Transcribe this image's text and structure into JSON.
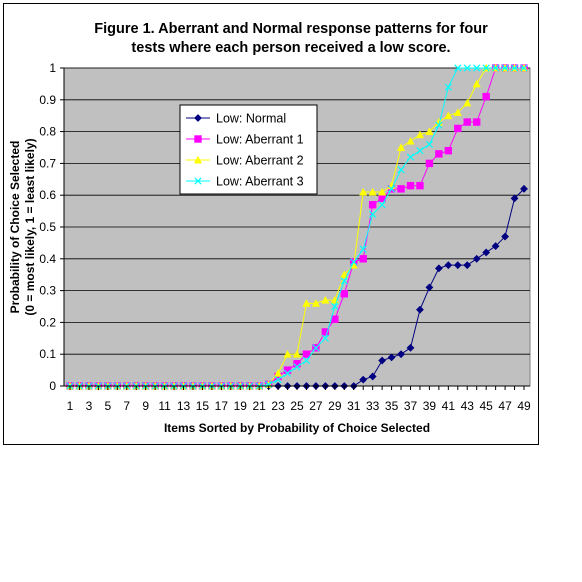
{
  "chart_data": {
    "type": "line",
    "title_lines": [
      "Figure 1. Aberrant and Normal  response patterns for four",
      "tests where each person received a low score."
    ],
    "xlabel": "Items Sorted by Probability of Choice Selected",
    "ylabel_lines": [
      "Probability of Choice Selected",
      "(0 = most likely, 1 = least likely)"
    ],
    "xlim": [
      1,
      49
    ],
    "ylim": [
      0,
      1
    ],
    "x_tick_labels": [
      "1",
      "3",
      "5",
      "7",
      "9",
      "11",
      "13",
      "15",
      "17",
      "19",
      "21",
      "23",
      "25",
      "27",
      "29",
      "31",
      "33",
      "35",
      "37",
      "39",
      "41",
      "43",
      "45",
      "47",
      "49"
    ],
    "y_tick_labels": [
      "0",
      "0.1",
      "0.2",
      "0.3",
      "0.4",
      "0.5",
      "0.6",
      "0.7",
      "0.8",
      "0.9",
      "1"
    ],
    "grid": "horizontal",
    "legend_position": "upper-left",
    "background": "#c0c0c0",
    "series": [
      {
        "name": "Low: Normal",
        "color": "#000080",
        "marker": "diamond",
        "values": [
          0,
          0,
          0,
          0,
          0,
          0,
          0,
          0,
          0,
          0,
          0,
          0,
          0,
          0,
          0,
          0,
          0,
          0,
          0,
          0,
          0,
          0,
          0,
          0,
          0,
          0,
          0,
          0,
          0,
          0,
          0,
          0.02,
          0.03,
          0.08,
          0.09,
          0.1,
          0.12,
          0.24,
          0.31,
          0.37,
          0.38,
          0.38,
          0.38,
          0.4,
          0.42,
          0.44,
          0.47,
          0.59,
          0.62
        ]
      },
      {
        "name": "Low: Aberrant 1",
        "color": "#ff00ff",
        "marker": "square",
        "values": [
          0,
          0,
          0,
          0,
          0,
          0,
          0,
          0,
          0,
          0,
          0,
          0,
          0,
          0,
          0,
          0,
          0,
          0,
          0,
          0,
          0,
          0.005,
          0.03,
          0.05,
          0.07,
          0.1,
          0.12,
          0.17,
          0.21,
          0.29,
          0.39,
          0.4,
          0.57,
          0.59,
          0.62,
          0.62,
          0.63,
          0.63,
          0.7,
          0.73,
          0.74,
          0.81,
          0.83,
          0.83,
          0.91,
          1.0,
          1.0,
          1.0,
          1.0
        ]
      },
      {
        "name": "Low: Aberrant 2",
        "color": "#ffff00",
        "marker": "triangle",
        "values": [
          0,
          0,
          0,
          0,
          0,
          0,
          0,
          0,
          0,
          0,
          0,
          0,
          0,
          0,
          0,
          0,
          0,
          0,
          0,
          0,
          0,
          0.005,
          0.04,
          0.1,
          0.1,
          0.26,
          0.26,
          0.27,
          0.27,
          0.35,
          0.38,
          0.61,
          0.61,
          0.61,
          0.63,
          0.75,
          0.77,
          0.79,
          0.8,
          0.83,
          0.85,
          0.86,
          0.89,
          0.95,
          1.0,
          1.0,
          1.0,
          1.0,
          1.0
        ]
      },
      {
        "name": "Low: Aberrant 3",
        "color": "#00ffff",
        "marker": "x",
        "values": [
          0,
          0,
          0,
          0,
          0,
          0,
          0,
          0,
          0,
          0,
          0,
          0,
          0,
          0,
          0,
          0,
          0,
          0,
          0,
          0,
          0,
          0.005,
          0.02,
          0.04,
          0.06,
          0.08,
          0.12,
          0.15,
          0.25,
          0.33,
          0.39,
          0.43,
          0.54,
          0.57,
          0.62,
          0.68,
          0.72,
          0.74,
          0.76,
          0.82,
          0.94,
          1.0,
          1.0,
          1.0,
          1.0,
          1.0,
          1.0,
          1.0,
          1.0
        ]
      }
    ]
  }
}
